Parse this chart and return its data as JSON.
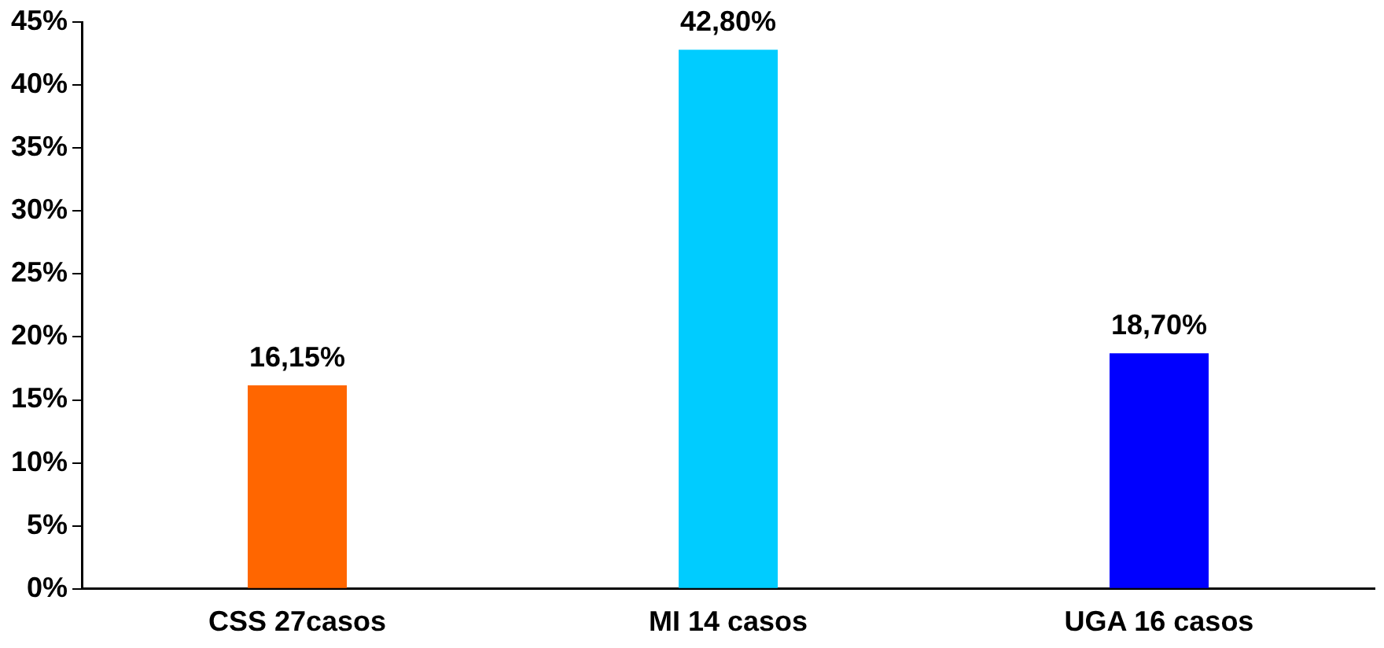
{
  "chart_data": {
    "type": "bar",
    "categories": [
      "CSS 27casos",
      "MI 14 casos",
      "UGA 16 casos"
    ],
    "values": [
      16.15,
      42.8,
      18.7
    ],
    "colors": [
      "#ff6600",
      "#00ccff",
      "#0000ff"
    ],
    "value_labels": [
      "16,15%",
      "42,80%",
      "18,70%"
    ],
    "ylim": [
      0,
      45
    ],
    "yticks": [
      {
        "value": 0,
        "label": "0%"
      },
      {
        "value": 5,
        "label": "5%"
      },
      {
        "value": 10,
        "label": "10%"
      },
      {
        "value": 15,
        "label": "15%"
      },
      {
        "value": 20,
        "label": "20%"
      },
      {
        "value": 25,
        "label": "25%"
      },
      {
        "value": 30,
        "label": "30%"
      },
      {
        "value": 35,
        "label": "35%"
      },
      {
        "value": 40,
        "label": "40%"
      },
      {
        "value": 45,
        "label": "45%"
      }
    ],
    "grid": false,
    "legend": false
  }
}
